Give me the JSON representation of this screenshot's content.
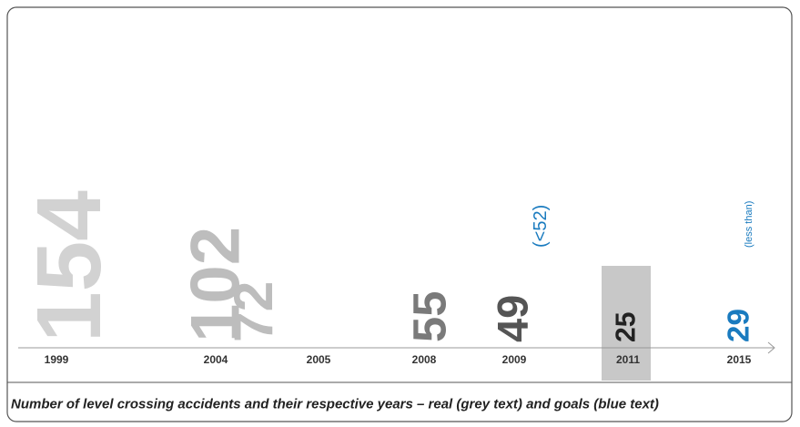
{
  "chart_data": {
    "type": "typographic",
    "categories": [
      "1999",
      "2004",
      "2005",
      "2008",
      "2009",
      "2011",
      "2015"
    ],
    "values": [
      154,
      102,
      72,
      55,
      49,
      25,
      29
    ],
    "colors": [
      "#d2d2d2",
      "#bdbdbd",
      "#bdbdbd",
      "#7a7a7a",
      "#555555",
      "#222222",
      "#1a7bbf"
    ],
    "category_colors": [
      "#333333",
      "#333333",
      "#333333",
      "#333333",
      "#333333",
      "#333333",
      "#1a7bbf"
    ],
    "annotations": [
      "(<52)",
      "(less than)"
    ],
    "annotation_color": "#1a7bbf",
    "caption": "Number of level crossing accidents and their respective years – real (grey text) and goals (blue text)"
  }
}
